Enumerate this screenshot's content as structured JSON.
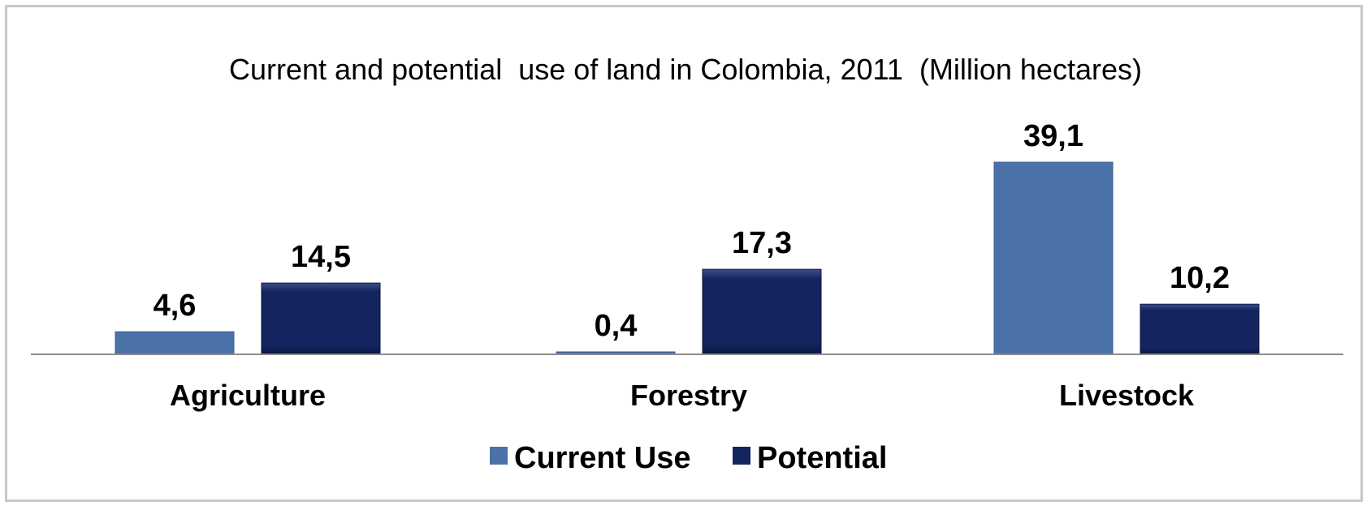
{
  "chart_data": {
    "type": "bar",
    "title": "Current and potential  use of land in Colombia, 2011  (Million hectares)",
    "categories": [
      "Agriculture",
      "Forestry",
      "Livestock"
    ],
    "series": [
      {
        "name": "Current Use",
        "values": [
          4.6,
          0.4,
          39.1
        ],
        "labels": [
          "4,6",
          "0,4",
          "39,1"
        ],
        "color": "#4a72a8"
      },
      {
        "name": "Potential",
        "values": [
          14.5,
          17.3,
          10.2
        ],
        "labels": [
          "14,5",
          "17,3",
          "10,2"
        ],
        "color": "#13245e"
      }
    ],
    "ylim": [
      0,
      45
    ],
    "grid": false,
    "legend": "bottom"
  }
}
